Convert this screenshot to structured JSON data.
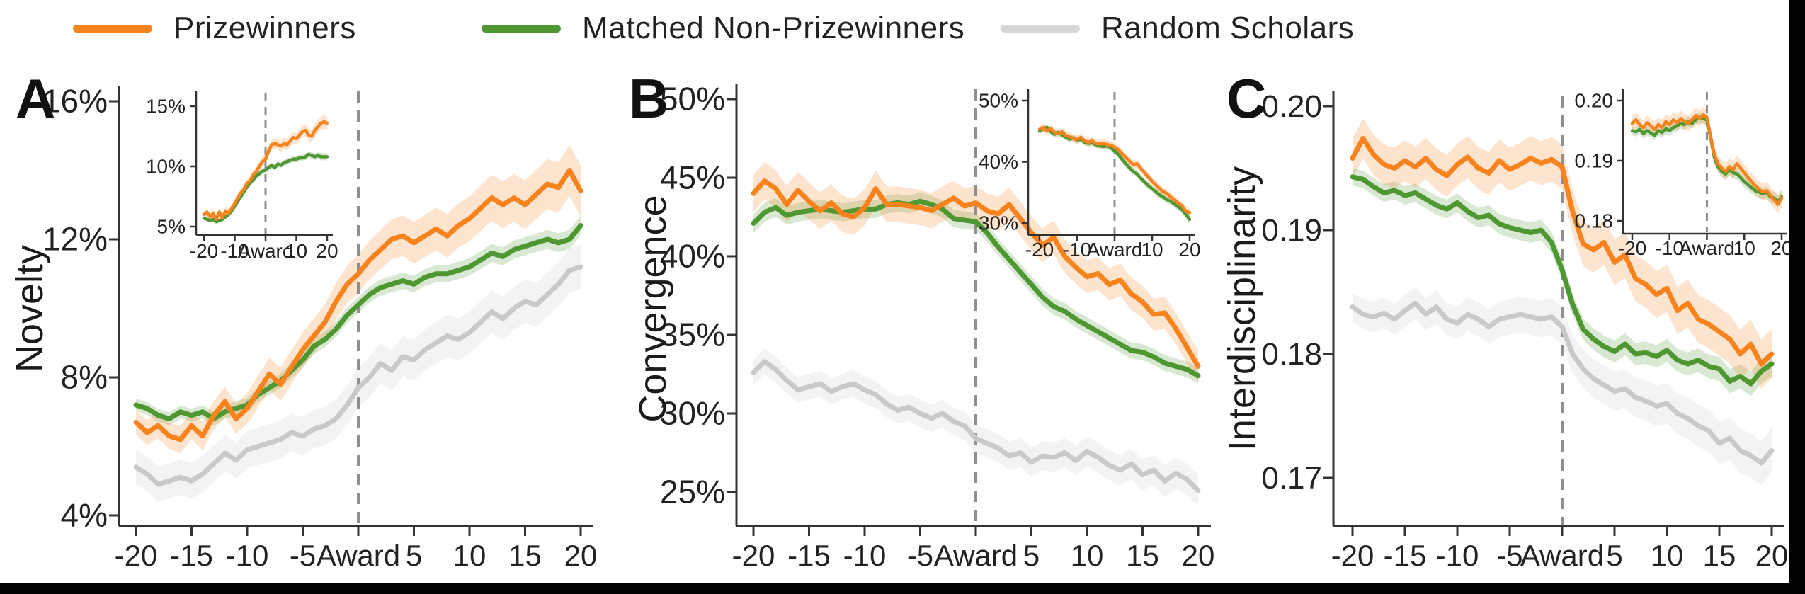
{
  "figure": {
    "background": "#ffffff",
    "frame_color": "#000000"
  },
  "legend": {
    "items": [
      {
        "label": "Prizewinners",
        "color": "#f6831e"
      },
      {
        "label": "Matched Non-Prizewinners",
        "color": "#4e9732"
      },
      {
        "label": "Random Scholars",
        "color": "#d6d6d6"
      }
    ]
  },
  "award_marker_label": "Award",
  "chart_data": [
    {
      "type": "line",
      "panel_label": "A",
      "ylabel": "Novelty",
      "x_range": [
        -20,
        20
      ],
      "ylim": [
        4,
        16
      ],
      "y_ticks": [
        {
          "label": "16%",
          "v": 16
        },
        {
          "label": "12%",
          "v": 12
        },
        {
          "label": "8%",
          "v": 8
        },
        {
          "label": "4%",
          "v": 4
        }
      ],
      "x_tick_labels": [
        "-20",
        "-15",
        "-10",
        "-5",
        "Award",
        "5",
        "10",
        "15",
        "20"
      ],
      "x_tick_values": [
        -20,
        -15,
        -10,
        -5,
        0,
        5,
        10,
        15,
        20
      ],
      "award_line_x": 0,
      "series": [
        {
          "name": "Prizewinners",
          "color": "#f6831e",
          "band": [
            0.35,
            0.75
          ],
          "values": [
            6.7,
            6.4,
            6.6,
            6.3,
            6.2,
            6.6,
            6.3,
            6.9,
            7.3,
            6.8,
            7.1,
            7.6,
            8.1,
            7.8,
            8.3,
            8.8,
            9.2,
            9.6,
            10.2,
            10.7,
            11.0,
            11.4,
            11.7,
            12.0,
            12.1,
            11.9,
            12.1,
            12.3,
            12.1,
            12.4,
            12.6,
            12.9,
            13.2,
            13.0,
            13.2,
            13.0,
            13.3,
            13.6,
            13.5,
            14.0,
            13.4
          ]
        },
        {
          "name": "Matched Non-Prizewinners",
          "color": "#4e9732",
          "band": [
            0.18,
            0.28
          ],
          "values": [
            7.2,
            7.1,
            6.9,
            6.8,
            7.0,
            6.9,
            7.0,
            6.8,
            7.0,
            7.1,
            7.2,
            7.5,
            7.7,
            7.9,
            8.2,
            8.5,
            8.9,
            9.1,
            9.4,
            9.8,
            10.1,
            10.4,
            10.6,
            10.7,
            10.8,
            10.7,
            10.9,
            11.0,
            11.0,
            11.1,
            11.2,
            11.4,
            11.6,
            11.5,
            11.7,
            11.8,
            11.9,
            12.0,
            11.9,
            12.0,
            12.4
          ]
        },
        {
          "name": "Random Scholars",
          "color": "#c9c9c9",
          "band": [
            0.5,
            0.65
          ],
          "values": [
            5.4,
            5.2,
            4.9,
            5.0,
            5.1,
            5.0,
            5.2,
            5.5,
            5.8,
            5.6,
            5.9,
            6.0,
            6.1,
            6.2,
            6.4,
            6.3,
            6.5,
            6.6,
            6.8,
            7.2,
            7.7,
            8.0,
            8.4,
            8.2,
            8.6,
            8.5,
            8.8,
            9.0,
            9.2,
            9.1,
            9.3,
            9.6,
            9.9,
            9.7,
            10.0,
            10.2,
            10.1,
            10.4,
            10.7,
            11.1,
            11.2
          ]
        }
      ],
      "inset": {
        "ylim": [
          5,
          15
        ],
        "y_ticks": [
          {
            "label": "15%",
            "v": 15
          },
          {
            "label": "10%",
            "v": 10
          },
          {
            "label": "5%",
            "v": 5
          }
        ],
        "x_tick_labels": [
          "-20",
          "-10",
          "Award",
          "10",
          "20"
        ],
        "x_tick_values": [
          -20,
          -10,
          0,
          10,
          20
        ],
        "award_line_x": 0,
        "series": [
          {
            "name": "Prizewinners",
            "color": "#f6831e",
            "band": [
              0.3,
              0.55
            ],
            "values": [
              6.0,
              6.2,
              5.8,
              6.1,
              5.6,
              6.2,
              5.7,
              6.3,
              6.1,
              6.5,
              6.9,
              7.4,
              7.8,
              8.1,
              8.6,
              8.8,
              9.3,
              9.6,
              10.0,
              10.4,
              10.6,
              11.3,
              11.8,
              11.9,
              11.8,
              11.7,
              11.9,
              11.8,
              12.1,
              12.4,
              12.3,
              12.6,
              12.9,
              13.0,
              12.6,
              12.5,
              13.0,
              13.3,
              13.6,
              13.7,
              13.6
            ]
          },
          {
            "name": "Matched Non-Prizewinners",
            "color": "#4e9732",
            "band": [
              0.15,
              0.3
            ],
            "values": [
              5.7,
              5.6,
              5.5,
              5.6,
              5.4,
              5.5,
              5.6,
              5.8,
              6.0,
              6.3,
              6.7,
              7.1,
              7.5,
              7.9,
              8.3,
              8.6,
              8.9,
              9.2,
              9.4,
              9.6,
              9.7,
              9.9,
              10.1,
              9.9,
              10.2,
              10.1,
              10.3,
              10.4,
              10.5,
              10.6,
              10.6,
              10.7,
              10.7,
              10.8,
              11.0,
              10.9,
              10.8,
              10.9,
              10.8,
              10.8,
              10.8
            ]
          }
        ]
      }
    },
    {
      "type": "line",
      "panel_label": "B",
      "ylabel": "Convergence",
      "x_range": [
        -20,
        20
      ],
      "ylim": [
        25,
        50
      ],
      "y_ticks": [
        {
          "label": "50%",
          "v": 50
        },
        {
          "label": "45%",
          "v": 45
        },
        {
          "label": "40%",
          "v": 40
        },
        {
          "label": "35%",
          "v": 35
        },
        {
          "label": "30%",
          "v": 30
        },
        {
          "label": "25%",
          "v": 25
        }
      ],
      "x_tick_labels": [
        "-20",
        "-15",
        "-10",
        "-5",
        "Award",
        "5",
        "10",
        "15",
        "20"
      ],
      "x_tick_values": [
        -20,
        -15,
        -10,
        -5,
        0,
        5,
        10,
        15,
        20
      ],
      "award_line_x": 0,
      "series": [
        {
          "name": "Prizewinners",
          "color": "#f6831e",
          "band": [
            1.2,
            1.0
          ],
          "values": [
            44.0,
            44.8,
            44.3,
            43.3,
            44.2,
            43.5,
            42.9,
            43.4,
            42.7,
            42.5,
            43.1,
            44.3,
            43.3,
            43.3,
            43.2,
            43.1,
            42.9,
            43.3,
            43.7,
            43.2,
            43.4,
            42.9,
            42.7,
            43.3,
            42.4,
            41.5,
            40.7,
            41.2,
            40.0,
            39.3,
            38.7,
            38.9,
            38.2,
            38.5,
            37.6,
            37.1,
            36.3,
            36.4,
            35.4,
            34.2,
            33.0
          ]
        },
        {
          "name": "Matched Non-Prizewinners",
          "color": "#4e9732",
          "band": [
            0.6,
            0.5
          ],
          "values": [
            42.1,
            42.8,
            43.1,
            42.6,
            42.8,
            42.9,
            43.0,
            42.9,
            42.8,
            42.9,
            43.0,
            43.0,
            43.3,
            43.4,
            43.3,
            43.5,
            43.3,
            43.0,
            42.4,
            42.3,
            42.2,
            41.5,
            40.6,
            39.8,
            39.0,
            38.2,
            37.4,
            36.8,
            36.5,
            36.0,
            35.6,
            35.2,
            34.8,
            34.4,
            34.0,
            33.9,
            33.6,
            33.2,
            33.0,
            32.8,
            32.4
          ]
        },
        {
          "name": "Random Scholars",
          "color": "#c9c9c9",
          "band": [
            0.8,
            1.0
          ],
          "values": [
            32.6,
            33.3,
            32.8,
            32.1,
            31.5,
            31.7,
            31.9,
            31.4,
            31.7,
            31.9,
            31.5,
            31.2,
            30.6,
            30.2,
            30.4,
            30.0,
            29.7,
            30.0,
            29.5,
            29.2,
            28.4,
            28.1,
            27.8,
            27.3,
            27.5,
            26.9,
            27.3,
            27.2,
            27.5,
            27.0,
            27.6,
            27.2,
            26.7,
            26.4,
            26.8,
            26.1,
            26.4,
            25.7,
            26.2,
            25.8,
            25.1
          ]
        }
      ],
      "inset": {
        "ylim": [
          30,
          50
        ],
        "y_ticks": [
          {
            "label": "50%",
            "v": 50
          },
          {
            "label": "40%",
            "v": 40
          },
          {
            "label": "30%",
            "v": 30
          }
        ],
        "x_tick_labels": [
          "-20",
          "-10",
          "Award",
          "10",
          "20"
        ],
        "x_tick_values": [
          -20,
          -10,
          0,
          10,
          20
        ],
        "award_line_x": 0,
        "series": [
          {
            "name": "Prizewinners",
            "color": "#f6831e",
            "band": [
              0.7,
              0.7
            ],
            "values": [
              45.3,
              45.6,
              45.0,
              45.4,
              44.8,
              44.6,
              44.9,
              44.3,
              44.1,
              43.8,
              43.6,
              44.0,
              43.4,
              43.2,
              43.4,
              43.0,
              42.9,
              43.0,
              42.8,
              42.7,
              42.4,
              42.0,
              41.3,
              40.7,
              40.1,
              39.5,
              39.7,
              38.9,
              38.2,
              37.5,
              36.8,
              36.2,
              35.6,
              35.1,
              34.8,
              34.2,
              33.8,
              33.2,
              32.8,
              31.9,
              31.7
            ]
          },
          {
            "name": "Matched Non-Prizewinners",
            "color": "#4e9732",
            "band": [
              0.5,
              0.6
            ],
            "values": [
              45.0,
              45.4,
              45.6,
              44.9,
              44.5,
              44.8,
              44.4,
              44.0,
              43.7,
              43.9,
              43.5,
              43.7,
              43.2,
              43.0,
              43.1,
              42.8,
              42.6,
              42.5,
              42.6,
              42.3,
              41.8,
              41.2,
              40.4,
              39.7,
              39.0,
              38.4,
              38.0,
              37.3,
              36.7,
              36.1,
              35.6,
              35.1,
              34.6,
              34.2,
              33.8,
              33.5,
              33.1,
              32.6,
              32.2,
              31.4,
              30.6
            ]
          }
        ]
      }
    },
    {
      "type": "line",
      "panel_label": "C",
      "ylabel": "Interdisciplinarity",
      "x_range": [
        -20,
        20
      ],
      "ylim": [
        0.17,
        0.2
      ],
      "y_ticks": [
        {
          "label": "0.20",
          "v": 0.2
        },
        {
          "label": "0.19",
          "v": 0.19
        },
        {
          "label": "0.18",
          "v": 0.18
        },
        {
          "label": "0.17",
          "v": 0.17
        }
      ],
      "x_tick_labels": [
        "-20",
        "-15",
        "-10",
        "-5",
        "Award",
        "5",
        "10",
        "15",
        "20"
      ],
      "x_tick_values": [
        -20,
        -15,
        -10,
        -5,
        0,
        5,
        10,
        15,
        20
      ],
      "award_line_x": 0,
      "series": [
        {
          "name": "Prizewinners",
          "color": "#f6831e",
          "band": [
            0.0016,
            0.002
          ],
          "values": [
            0.1958,
            0.1974,
            0.1961,
            0.1953,
            0.195,
            0.1956,
            0.1951,
            0.1958,
            0.1949,
            0.1944,
            0.1953,
            0.1959,
            0.195,
            0.1946,
            0.1956,
            0.1949,
            0.1953,
            0.1958,
            0.1954,
            0.1957,
            0.1951,
            0.1915,
            0.1889,
            0.1884,
            0.189,
            0.1874,
            0.188,
            0.1861,
            0.1856,
            0.1848,
            0.1853,
            0.1835,
            0.1841,
            0.1828,
            0.1824,
            0.1818,
            0.1812,
            0.18,
            0.1808,
            0.1792,
            0.18
          ]
        },
        {
          "name": "Matched Non-Prizewinners",
          "color": "#4e9732",
          "band": [
            0.0007,
            0.001
          ],
          "values": [
            0.1943,
            0.1941,
            0.1935,
            0.193,
            0.1932,
            0.1928,
            0.193,
            0.1925,
            0.192,
            0.1917,
            0.1922,
            0.1915,
            0.191,
            0.1912,
            0.1905,
            0.1902,
            0.19,
            0.1898,
            0.19,
            0.189,
            0.1868,
            0.184,
            0.182,
            0.1812,
            0.1806,
            0.1802,
            0.1808,
            0.18,
            0.1801,
            0.1798,
            0.1803,
            0.1795,
            0.1792,
            0.1795,
            0.179,
            0.1788,
            0.1778,
            0.1782,
            0.1776,
            0.1786,
            0.1792
          ]
        },
        {
          "name": "Random Scholars",
          "color": "#c9c9c9",
          "band": [
            0.0012,
            0.0018
          ],
          "values": [
            0.1838,
            0.1832,
            0.183,
            0.1833,
            0.1828,
            0.1835,
            0.1841,
            0.1832,
            0.1838,
            0.1828,
            0.1825,
            0.1832,
            0.1828,
            0.1822,
            0.1828,
            0.183,
            0.1832,
            0.183,
            0.1828,
            0.183,
            0.1822,
            0.18,
            0.1788,
            0.178,
            0.1775,
            0.177,
            0.1772,
            0.1765,
            0.1762,
            0.1758,
            0.176,
            0.1752,
            0.1748,
            0.1742,
            0.1738,
            0.1728,
            0.1732,
            0.1722,
            0.1718,
            0.1712,
            0.1722
          ]
        }
      ],
      "inset": {
        "ylim": [
          0.18,
          0.2
        ],
        "y_ticks": [
          {
            "label": "0.20",
            "v": 0.2
          },
          {
            "label": "0.19",
            "v": 0.19
          },
          {
            "label": "0.18",
            "v": 0.18
          }
        ],
        "x_tick_labels": [
          "-20",
          "-10",
          "Award",
          "10",
          "20"
        ],
        "x_tick_values": [
          -20,
          -10,
          0,
          10,
          20
        ],
        "award_line_x": 0,
        "series": [
          {
            "name": "Prizewinners",
            "color": "#f6831e",
            "band": [
              0.0012,
              0.0015
            ],
            "values": [
              0.1962,
              0.1968,
              0.196,
              0.1955,
              0.1963,
              0.1958,
              0.1952,
              0.196,
              0.1955,
              0.1965,
              0.196,
              0.1968,
              0.1963,
              0.197,
              0.1965,
              0.1962,
              0.1968,
              0.1975,
              0.197,
              0.1976,
              0.1972,
              0.194,
              0.191,
              0.1895,
              0.1888,
              0.1882,
              0.189,
              0.1885,
              0.1895,
              0.1888,
              0.188,
              0.1872,
              0.1865,
              0.1858,
              0.1852,
              0.1848,
              0.185,
              0.1842,
              0.1835,
              0.1828,
              0.1838
            ]
          },
          {
            "name": "Matched Non-Prizewinners",
            "color": "#4e9732",
            "band": [
              0.0008,
              0.001
            ],
            "values": [
              0.195,
              0.1948,
              0.1952,
              0.1945,
              0.195,
              0.1946,
              0.1942,
              0.195,
              0.1947,
              0.1953,
              0.195,
              0.1955,
              0.1958,
              0.1962,
              0.196,
              0.1965,
              0.1962,
              0.1968,
              0.1972,
              0.197,
              0.1968,
              0.1938,
              0.1905,
              0.189,
              0.1882,
              0.1878,
              0.1885,
              0.188,
              0.1878,
              0.1872,
              0.1865,
              0.186,
              0.1855,
              0.185,
              0.1848,
              0.1845,
              0.1848,
              0.184,
              0.1838,
              0.1832,
              0.184
            ]
          }
        ]
      }
    }
  ]
}
